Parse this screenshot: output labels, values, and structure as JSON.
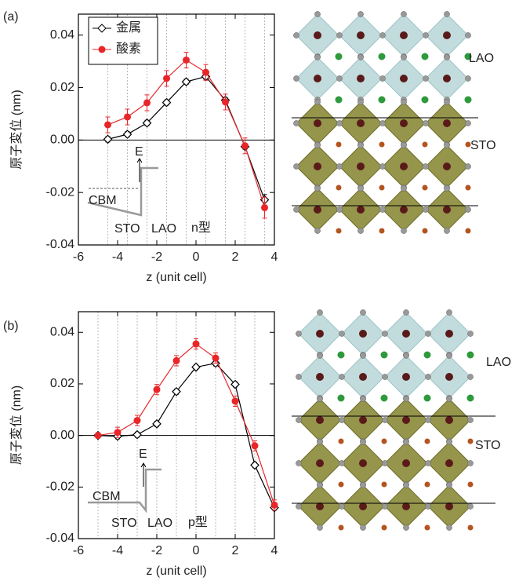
{
  "chart_data": [
    {
      "type": "line",
      "panel_label": "(a)",
      "x_label": "z (unit cell)",
      "y_label": "原子変位 (nm)",
      "xlim": [
        -6,
        4
      ],
      "xticks": [
        -6,
        -4,
        -2,
        0,
        2,
        4
      ],
      "ylim": [
        -0.04,
        0.048
      ],
      "yticks": [
        -0.04,
        -0.02,
        {
          "value": 0,
          "label": "0.00"
        },
        0.02,
        0.04
      ],
      "x": [
        -4.5,
        -3.5,
        -2.5,
        -1.5,
        -0.5,
        0.5,
        1.5,
        2.5,
        3.5
      ],
      "series": [
        {
          "name": "金属",
          "color": "#000000",
          "marker": "diamond",
          "values": [
            0.0003,
            0.0022,
            0.0065,
            0.0143,
            0.0222,
            0.0242,
            0.0152,
            -0.0025,
            -0.0228
          ],
          "errors": [
            0.001,
            0.001,
            0.001,
            0.001,
            0.001,
            0.001,
            0.001,
            0.001,
            0.002
          ]
        },
        {
          "name": "酸素",
          "color": "#e8262a",
          "marker": "circle",
          "values": [
            0.0058,
            0.0088,
            0.0142,
            0.0235,
            0.0305,
            0.0258,
            0.0145,
            -0.0022,
            -0.0258
          ],
          "errors": [
            0.003,
            0.003,
            0.003,
            0.003,
            0.003,
            0.003,
            0.003,
            0.003,
            0.004
          ]
        }
      ],
      "annotations": {
        "energy": "E",
        "cbm": "CBM",
        "substrate": "STO",
        "film": "LAO",
        "carrier_type": "n型"
      }
    },
    {
      "type": "line",
      "panel_label": "(b)",
      "x_label": "z (unit cell)",
      "y_label": "原子変位 (nm)",
      "xlim": [
        -6,
        4
      ],
      "xticks": [
        -6,
        -4,
        -2,
        0,
        2,
        4
      ],
      "ylim": [
        -0.04,
        0.048
      ],
      "yticks": [
        -0.04,
        -0.02,
        {
          "value": 0,
          "label": "0.00"
        },
        0.02,
        0.04
      ],
      "x": [
        -5,
        -4,
        -3,
        -2,
        -1,
        0,
        1,
        2,
        3,
        4
      ],
      "series": [
        {
          "color": "#000000",
          "marker": "diamond",
          "values": [
            0.0,
            -0.0003,
            0.0003,
            0.0045,
            0.017,
            0.0265,
            0.028,
            0.0198,
            -0.0115,
            -0.028
          ],
          "errors": [
            0.001,
            0.001,
            0.001,
            0.001,
            0.001,
            0.001,
            0.001,
            0.001,
            0.001,
            0.001
          ]
        },
        {
          "color": "#e8262a",
          "marker": "circle",
          "values": [
            0.0,
            0.0012,
            0.0058,
            0.0178,
            0.029,
            0.0355,
            0.03,
            0.0133,
            -0.004,
            -0.027
          ],
          "errors": [
            0.001,
            0.002,
            0.002,
            0.002,
            0.002,
            0.002,
            0.002,
            0.002,
            0.002,
            0.002
          ]
        }
      ],
      "annotations": {
        "energy": "E",
        "cbm": "CBM",
        "substrate": "STO",
        "film": "LAO",
        "carrier_type": "p型"
      }
    }
  ],
  "structures": [
    {
      "film": "LAO",
      "substrate": "STO"
    },
    {
      "film": "LAO",
      "substrate": "STO"
    }
  ]
}
